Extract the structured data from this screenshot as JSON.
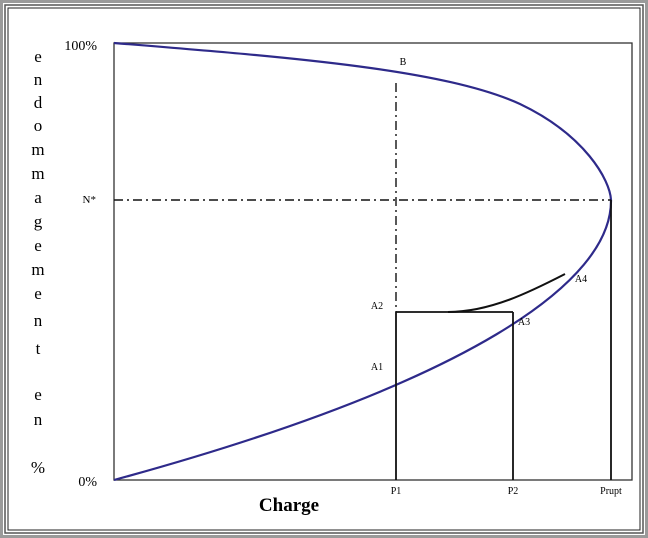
{
  "figure": {
    "y_axis_title_letters": [
      "e",
      "n",
      "d",
      "o",
      "m",
      "m",
      "a",
      "g",
      "e",
      "m",
      "e",
      "n",
      "t",
      "",
      "e",
      "n",
      "",
      "%"
    ],
    "y_tick_top": "100%",
    "y_tick_bottom": "0%",
    "y_tick_mid": "N*",
    "x_axis_title": "Charge",
    "x_ticks": [
      "P1",
      "P2",
      "Prupt"
    ],
    "point_labels": {
      "B": "B",
      "A1": "A1",
      "A2": "A2",
      "A3": "A3",
      "A4": "A4"
    }
  },
  "colors": {
    "curve": "#2e2a8a",
    "lines": "#111111",
    "frame_outer": "#6a6a6a",
    "frame_inner": "#333333"
  }
}
